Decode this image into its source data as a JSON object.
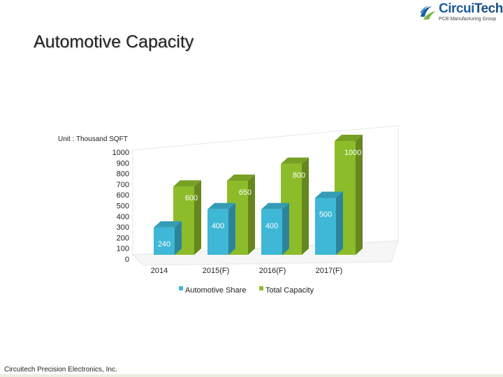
{
  "header": {
    "logo_name": "CircuiTech",
    "logo_name_part1": "Circui",
    "logo_name_part2": "Tech",
    "logo_tagline": "PCB Manufacturing Group",
    "logo_icon": "swoosh-logo-icon"
  },
  "page": {
    "title": "Automotive Capacity",
    "unit_label": "Unit : Thousand SQFT",
    "footer": "Circuitech Precision Electronics, Inc."
  },
  "chart_data": {
    "type": "bar",
    "categories": [
      "2014",
      "2015(F)",
      "2016(F)",
      "2017(F)"
    ],
    "series": [
      {
        "name": "Automotive Share",
        "values": [
          240,
          400,
          400,
          500
        ],
        "color": "#3eb8d6"
      },
      {
        "name": "Total Capacity",
        "values": [
          600,
          650,
          800,
          1000
        ],
        "color": "#8cbc2a"
      }
    ],
    "yticks": [
      1000,
      900,
      800,
      700,
      600,
      500,
      400,
      300,
      200,
      100,
      0
    ],
    "ylim": [
      0,
      1000
    ],
    "legend_position": "bottom",
    "grid": false,
    "style": "3d"
  }
}
